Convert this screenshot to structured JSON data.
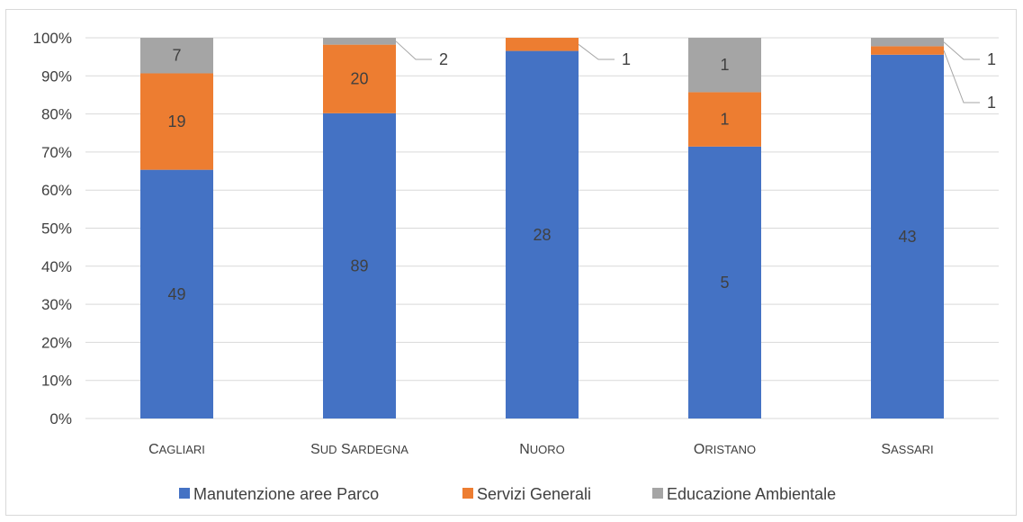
{
  "chart_data": {
    "type": "bar",
    "stacked": "percent",
    "categories": [
      "Cagliari",
      "Sud Sardegna",
      "Nuoro",
      "Oristano",
      "Sassari"
    ],
    "series": [
      {
        "name": "Manutenzione aree Parco",
        "color": "#4472C4",
        "values": [
          49,
          89,
          28,
          5,
          43
        ]
      },
      {
        "name": "Servizi Generali",
        "color": "#ED7D31",
        "values": [
          19,
          20,
          1,
          1,
          1
        ]
      },
      {
        "name": "Educazione Ambientale",
        "color": "#A5A5A5",
        "values": [
          7,
          2,
          0,
          1,
          1
        ]
      }
    ],
    "y_ticks": [
      "0%",
      "10%",
      "20%",
      "30%",
      "40%",
      "50%",
      "60%",
      "70%",
      "80%",
      "90%",
      "100%"
    ],
    "ylim": [
      0,
      100
    ],
    "grid": true,
    "legend_position": "bottom",
    "outside_labels": [
      {
        "category": 1,
        "series": 2,
        "text": "2"
      },
      {
        "category": 2,
        "series": 1,
        "text": "1"
      },
      {
        "category": 4,
        "series": 2,
        "text": "1"
      },
      {
        "category": 4,
        "series": 1,
        "text": "1"
      }
    ]
  }
}
